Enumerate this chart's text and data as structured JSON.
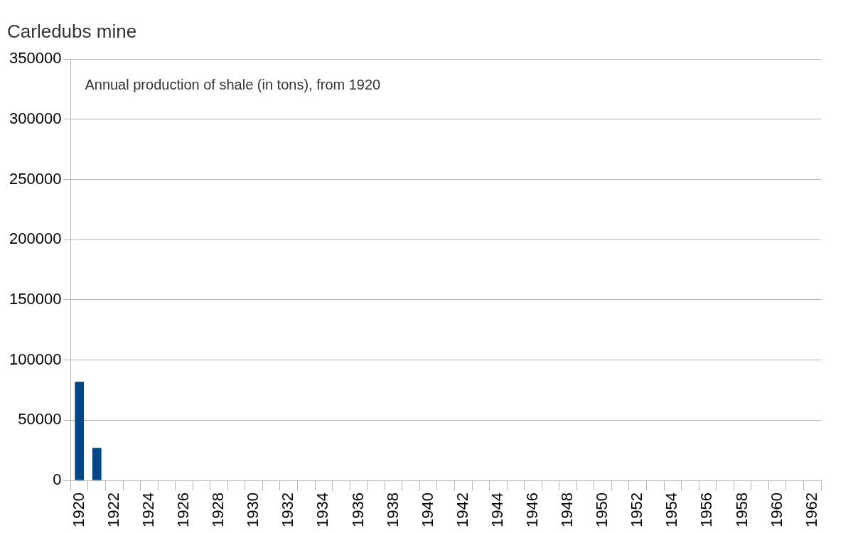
{
  "chart_data": {
    "type": "bar",
    "title": "Carledubs mine",
    "subtitle": "Annual production of shale (in tons), from 1920",
    "categories": [
      "1920",
      null,
      "1922",
      null,
      "1924",
      null,
      "1926",
      null,
      "1928",
      null,
      "1930",
      null,
      "1932",
      null,
      "1934",
      null,
      "1936",
      null,
      "1938",
      null,
      "1940",
      null,
      "1942",
      null,
      "1944",
      null,
      "1946",
      null,
      "1948",
      null,
      "1950",
      null,
      "1952",
      null,
      "1954",
      null,
      "1956",
      null,
      "1958",
      null,
      "1960",
      null,
      "1962"
    ],
    "values": [
      82000,
      27000,
      null,
      null,
      null,
      null,
      null,
      null,
      null,
      null,
      null,
      null,
      null,
      null,
      null,
      null,
      null,
      null,
      null,
      null,
      null,
      null,
      null,
      null,
      null,
      null,
      null,
      null,
      null,
      null,
      null,
      null,
      null,
      null,
      null,
      null,
      null,
      null,
      null,
      null,
      null,
      null,
      null
    ],
    "color": "#004586",
    "ylim": [
      0,
      350000
    ],
    "yticks": [
      0,
      50000,
      100000,
      150000,
      200000,
      250000,
      300000,
      350000
    ],
    "grid": "y",
    "legend": false
  }
}
